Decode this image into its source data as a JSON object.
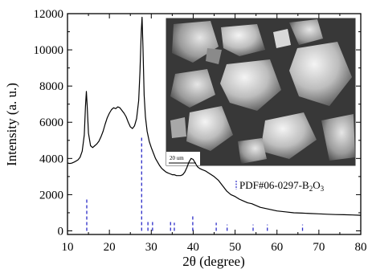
{
  "chart_data": {
    "type": "line",
    "title": "",
    "xlabel": "2θ (degree)",
    "ylabel": "Intensity (a. u.)",
    "xlim": [
      10,
      80
    ],
    "ylim": [
      -200,
      12000
    ],
    "x_ticks": [
      10,
      20,
      30,
      40,
      50,
      60,
      70,
      80
    ],
    "y_ticks": [
      0,
      2000,
      4000,
      6000,
      8000,
      10000,
      12000
    ],
    "x_minor_step": 5,
    "y_minor_step": 1000,
    "series": [
      {
        "name": "",
        "color": "#000000",
        "x": [
          10,
          10.5,
          11,
          11.5,
          12,
          12.5,
          13,
          13.5,
          14,
          14.3,
          14.5,
          14.7,
          15,
          15.5,
          16,
          16.5,
          17,
          17.5,
          18,
          18.5,
          19,
          19.5,
          20,
          20.5,
          21,
          21.5,
          22,
          22.5,
          23,
          23.5,
          24,
          24.5,
          25,
          25.5,
          26,
          26.5,
          27,
          27.3,
          27.6,
          27.8,
          28,
          28.3,
          28.6,
          29,
          29.5,
          30,
          30.5,
          31,
          31.5,
          32,
          32.5,
          33,
          33.5,
          34,
          34.5,
          35,
          35.5,
          36,
          36.5,
          37,
          37.5,
          38,
          38.5,
          39,
          39.5,
          40,
          40.5,
          41,
          41.5,
          42,
          43,
          44,
          45,
          46,
          47,
          48,
          49,
          50,
          51,
          52,
          53,
          54,
          55,
          56,
          57,
          58,
          59,
          60,
          62,
          64,
          66,
          68,
          70,
          72,
          74,
          76,
          78,
          80
        ],
        "y": [
          3750,
          3720,
          3740,
          3790,
          3850,
          3920,
          4060,
          4400,
          5300,
          6900,
          7700,
          6900,
          5400,
          4700,
          4600,
          4700,
          4800,
          4950,
          5200,
          5500,
          5900,
          6250,
          6500,
          6700,
          6800,
          6750,
          6850,
          6800,
          6650,
          6500,
          6300,
          6000,
          5750,
          5650,
          5800,
          6200,
          7200,
          8800,
          11000,
          11800,
          10200,
          7500,
          6300,
          5500,
          4950,
          4600,
          4300,
          4000,
          3800,
          3600,
          3450,
          3350,
          3250,
          3200,
          3150,
          3100,
          3100,
          3050,
          3050,
          3050,
          3100,
          3250,
          3500,
          3800,
          4000,
          3950,
          3750,
          3550,
          3450,
          3400,
          3300,
          3150,
          3000,
          2800,
          2500,
          2200,
          2000,
          1900,
          1750,
          1650,
          1550,
          1500,
          1400,
          1300,
          1250,
          1200,
          1150,
          1100,
          1050,
          1000,
          980,
          960,
          940,
          920,
          900,
          890,
          880,
          860
        ]
      }
    ],
    "reference": {
      "label_prefix": "PDF#06-0297-B",
      "label_sub1": "2",
      "label_mid": "O",
      "label_sub2": "3",
      "color": "#2b2bc8",
      "peaks": [
        {
          "x": 14.6,
          "y": 1800
        },
        {
          "x": 27.7,
          "y": 5200
        },
        {
          "x": 29.2,
          "y": 500
        },
        {
          "x": 30.3,
          "y": 600
        },
        {
          "x": 34.6,
          "y": 550
        },
        {
          "x": 35.5,
          "y": 450
        },
        {
          "x": 39.9,
          "y": 850
        },
        {
          "x": 45.5,
          "y": 450
        },
        {
          "x": 48.1,
          "y": 350
        },
        {
          "x": 54.3,
          "y": 350
        },
        {
          "x": 57.7,
          "y": 350
        },
        {
          "x": 66.1,
          "y": 350
        }
      ]
    },
    "inset": {
      "kind": "SEM micrograph",
      "scale_bar_label": "20 um"
    },
    "grid": false
  }
}
